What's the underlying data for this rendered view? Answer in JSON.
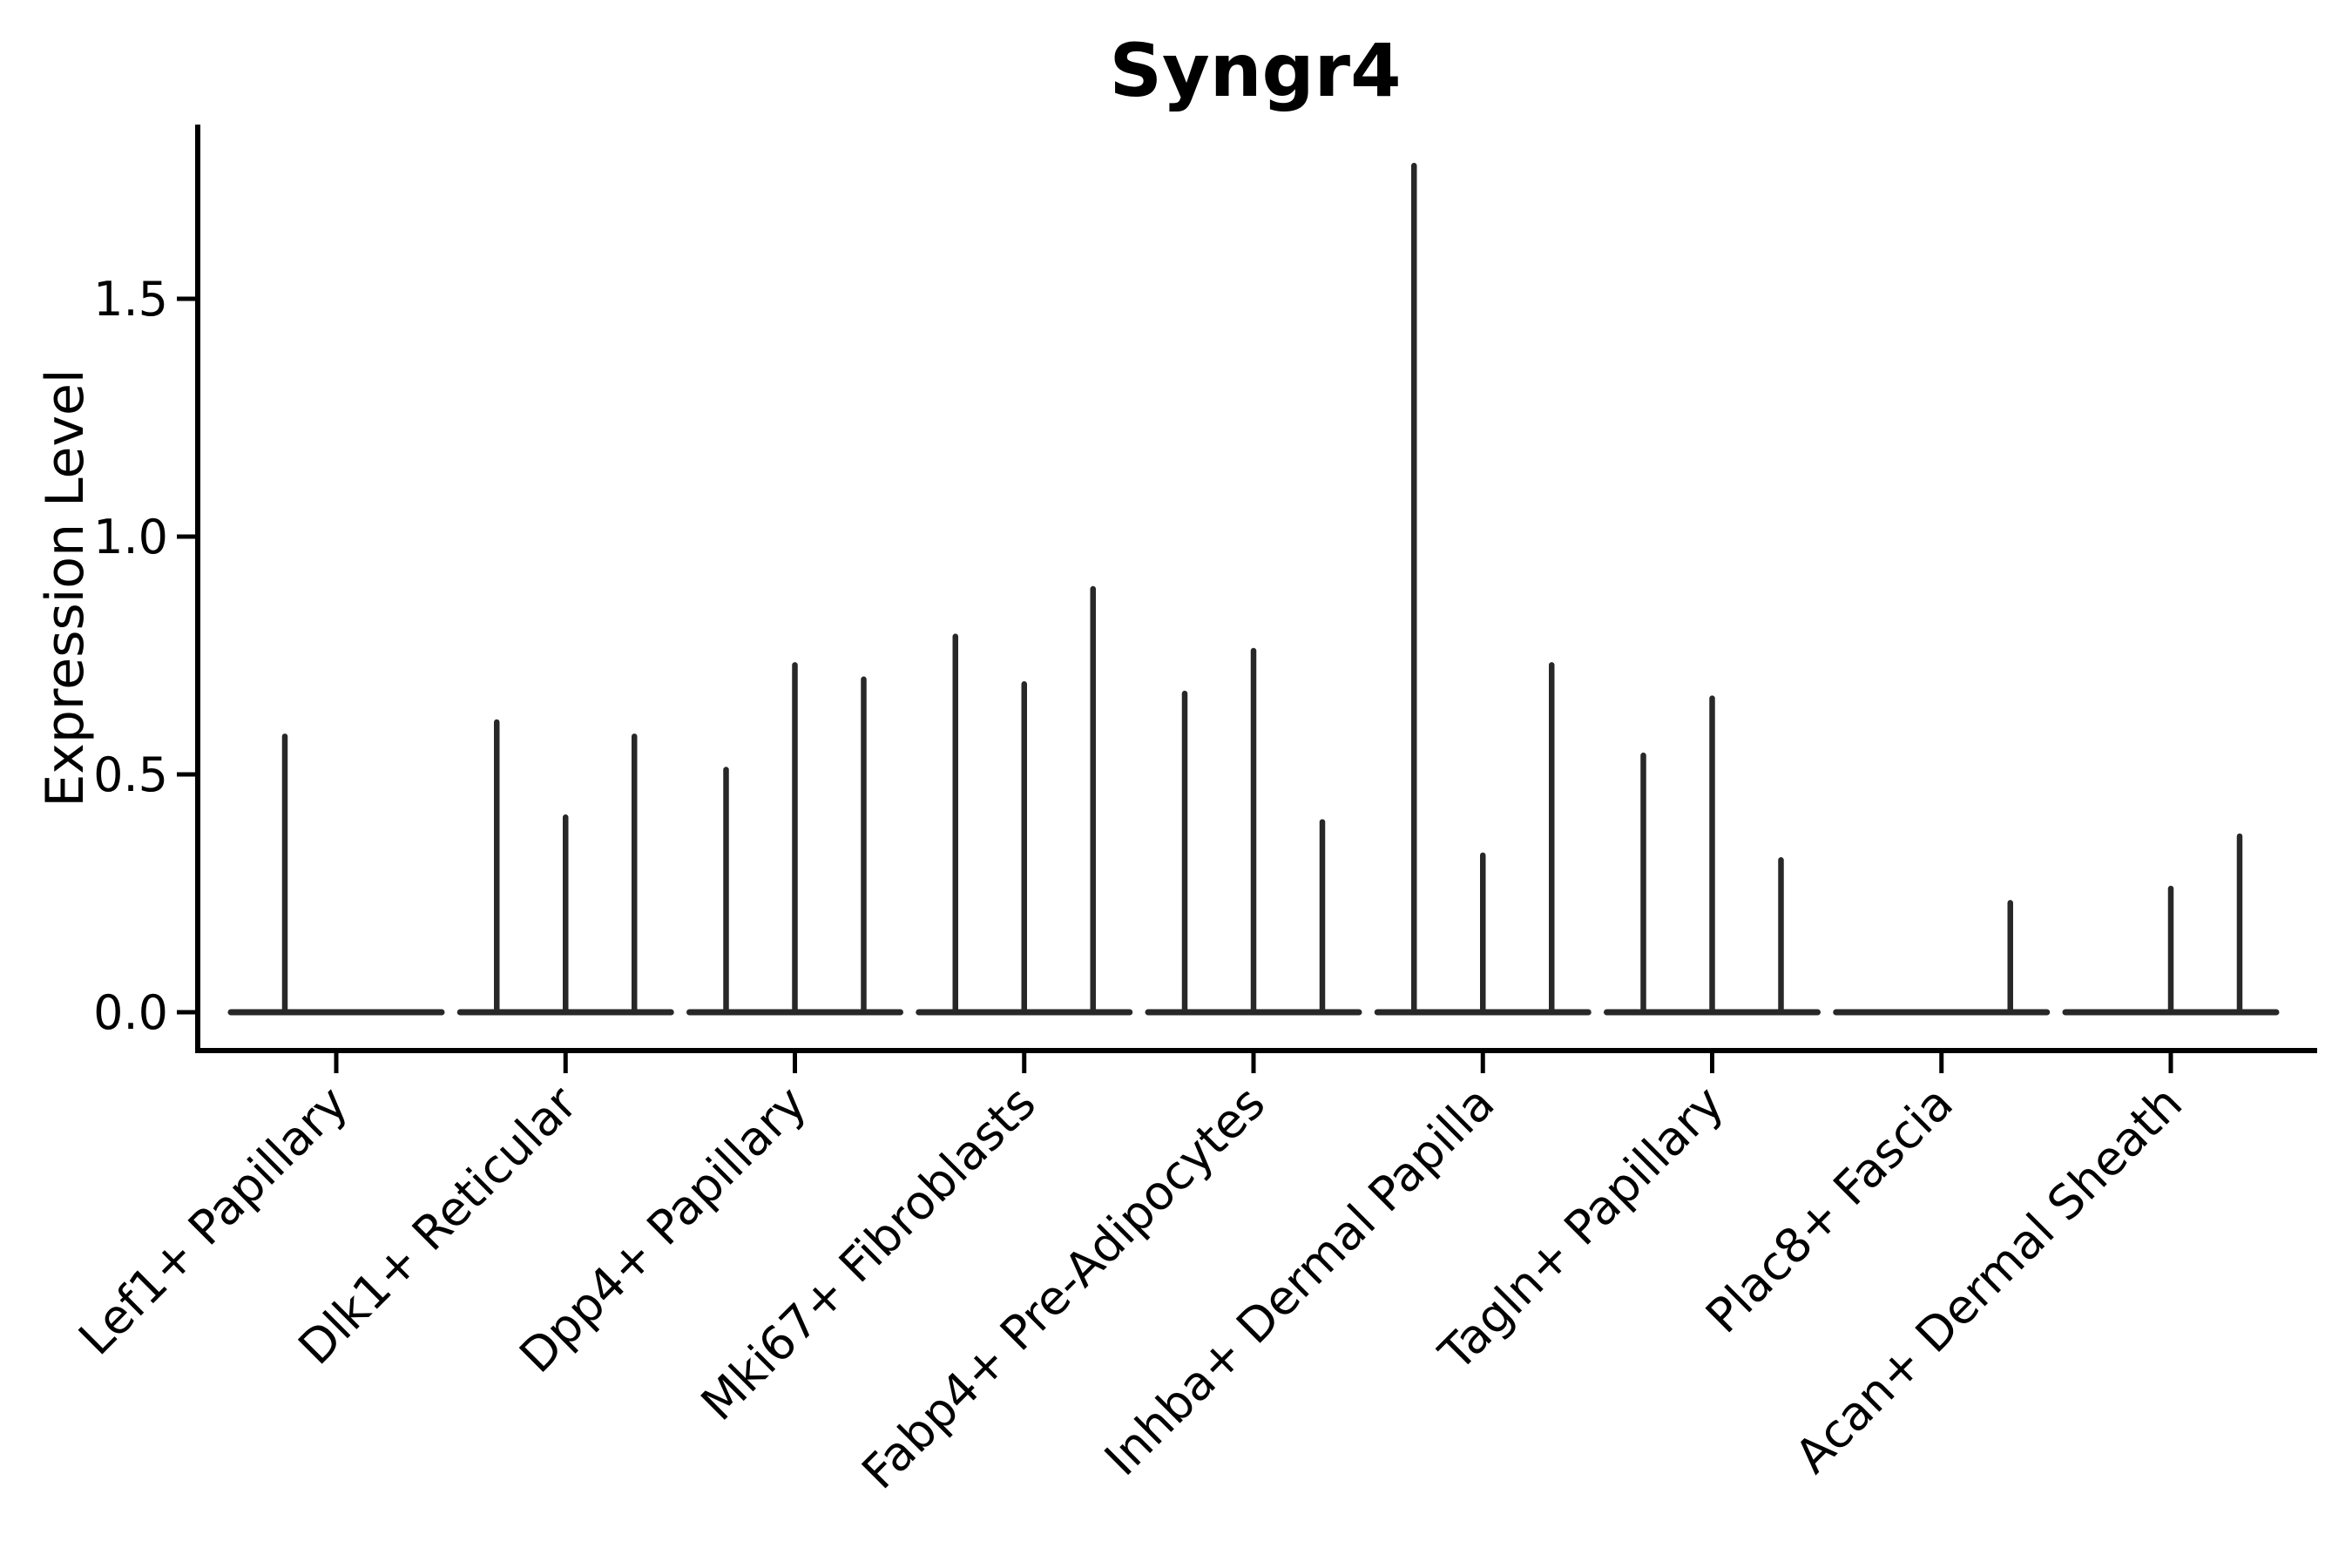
{
  "title": "Syngr4",
  "y_axis": {
    "label": "Expression Level",
    "tick_labels": [
      "0.0",
      "0.5",
      "1.0",
      "1.5"
    ]
  },
  "chart_data": {
    "type": "violin",
    "title": "Syngr4",
    "xlabel": "",
    "ylabel": "Expression Level",
    "ylim": [
      -0.08,
      1.87
    ],
    "yticks": [
      0.0,
      0.5,
      1.0,
      1.5
    ],
    "ytick_labels": [
      "0.0",
      "0.5",
      "1.0",
      "1.5"
    ],
    "grid": false,
    "legend": "none",
    "categories": [
      "Lef1+ Papillary",
      "Dlk1+ Reticular",
      "Dpp4+ Papillary",
      "Mki67+ Fibroblasts",
      "Fabp4+ Pre-Adipocytes",
      "Inhba+ Dermal Papilla",
      "Tagln+ Papillary",
      "Plac8+ Fascia",
      "Acan+ Dermal Sheath"
    ],
    "groups": [
      {
        "category": "Lef1+ Papillary",
        "violin_max_values": [
          0.58,
          0.0
        ]
      },
      {
        "category": "Dlk1+ Reticular",
        "violin_max_values": [
          0.61,
          0.41,
          0.58
        ]
      },
      {
        "category": "Dpp4+ Papillary",
        "violin_max_values": [
          0.51,
          0.73,
          0.7
        ]
      },
      {
        "category": "Mki67+ Fibroblasts",
        "violin_max_values": [
          0.79,
          0.69,
          0.89
        ]
      },
      {
        "category": "Fabp4+ Pre-Adipocytes",
        "violin_max_values": [
          0.67,
          0.76,
          0.4
        ]
      },
      {
        "category": "Inhba+ Dermal Papilla",
        "violin_max_values": [
          1.78,
          0.33,
          0.73
        ]
      },
      {
        "category": "Tagln+ Papillary",
        "violin_max_values": [
          0.54,
          0.66,
          0.32
        ]
      },
      {
        "category": "Plac8+ Fascia",
        "violin_max_values": [
          0.0,
          0.0,
          0.23
        ]
      },
      {
        "category": "Acan+ Dermal Sheath",
        "violin_max_values": [
          0.0,
          0.26,
          0.37
        ]
      }
    ],
    "colors": {
      "violin_stroke": "#282828",
      "spine": "#000000",
      "text": "#000000",
      "background": "#ffffff"
    }
  }
}
